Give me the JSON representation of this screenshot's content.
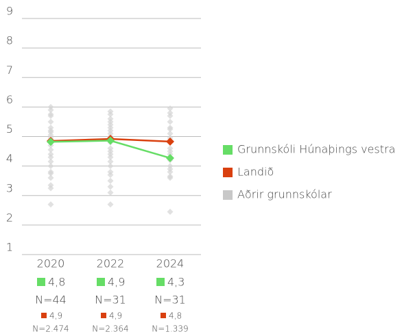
{
  "chart_data": {
    "type": "line",
    "categories": [
      "2020",
      "2022",
      "2024"
    ],
    "ylim": [
      1,
      9
    ],
    "yticks": [
      1,
      2,
      3,
      4,
      5,
      6,
      7,
      8,
      9
    ],
    "grid": true,
    "series": [
      {
        "name": "Grunnskóli Húnaþings vestra",
        "color": "#66dd66",
        "values": [
          4.82,
          4.86,
          4.27
        ],
        "value_labels": [
          "4,8",
          "4,9",
          "4,3"
        ],
        "n_labels": [
          "N=44",
          "N=31",
          "N=31"
        ]
      },
      {
        "name": "Landið",
        "color": "#d9400f",
        "values": [
          4.85,
          4.92,
          4.83
        ],
        "value_labels": [
          "4,9",
          "4,9",
          "4,8"
        ],
        "n_labels": [
          "N=2.474",
          "N=2.364",
          "N=1.339"
        ]
      },
      {
        "name": "Aðrir grunnskólar",
        "color": "#c8c8c8",
        "values": [
          [
            6.0,
            5.9,
            5.75,
            5.7,
            5.5,
            5.3,
            5.2,
            5.15,
            5.05,
            4.95,
            4.85,
            4.7,
            4.55,
            4.4,
            4.3,
            4.15,
            4.0,
            3.8,
            3.75,
            3.6,
            3.35,
            3.25,
            2.7
          ],
          [
            5.85,
            5.75,
            5.6,
            5.5,
            5.4,
            5.3,
            5.2,
            5.1,
            5.0,
            4.9,
            4.8,
            4.6,
            4.5,
            4.4,
            4.3,
            4.15,
            4.0,
            3.8,
            3.7,
            3.5,
            3.3,
            3.1,
            2.7
          ],
          [
            5.95,
            5.8,
            5.7,
            5.5,
            5.3,
            5.25,
            5.1,
            4.95,
            4.8,
            4.6,
            4.5,
            4.4,
            4.2,
            4.0,
            3.9,
            3.8,
            3.65,
            3.6,
            2.45
          ]
        ]
      }
    ]
  }
}
